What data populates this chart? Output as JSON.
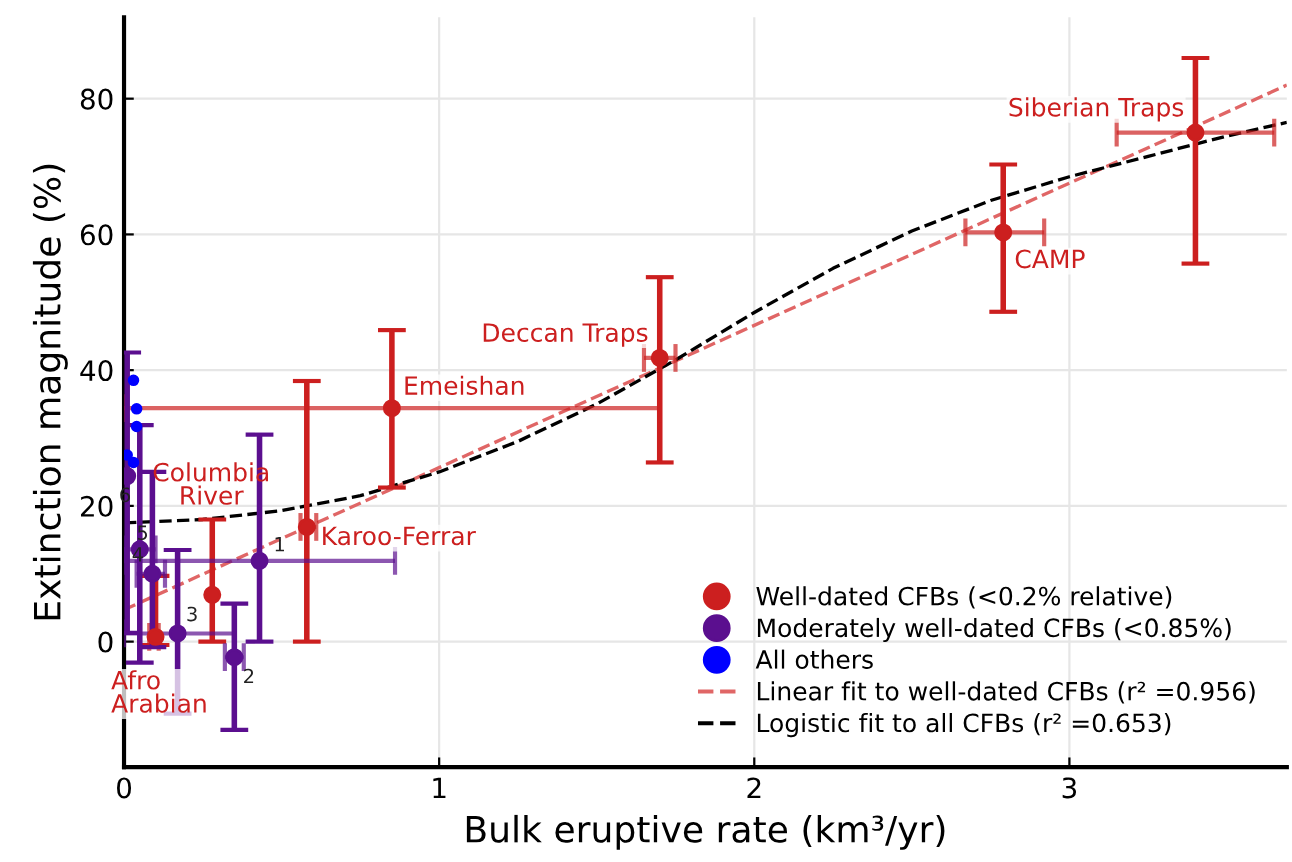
{
  "chart_data": {
    "type": "scatter",
    "xlabel": "Bulk eruptive rate (km³/yr)",
    "ylabel": "Extinction magnitude (%)",
    "xlim": [
      0,
      3.69
    ],
    "ylim": [
      -18.5,
      92
    ],
    "xticks": [
      0,
      1,
      2,
      3
    ],
    "yticks": [
      0,
      20,
      40,
      60,
      80
    ],
    "grid": true,
    "legend": "bottom right",
    "marker": "circle",
    "series": [
      {
        "name": "Well-dated CFBs (<0.2% relative)",
        "color": "#cc1f1f",
        "x": [
          3.4,
          2.79,
          1.7,
          0.85,
          0.58,
          0.28,
          0.1
        ],
        "values": [
          75,
          60.3,
          41.8,
          34.4,
          16.9,
          6.9,
          0.7
        ],
        "errors": [
          [
            55.7,
            86
          ],
          [
            48.6,
            70.3
          ],
          [
            26.4,
            53.7
          ],
          [
            22.7,
            45.9
          ],
          [
            0,
            38.4
          ],
          [
            0,
            18
          ],
          [
            -0.5,
            9.7
          ]
        ],
        "xerrors": [
          [
            3.15,
            3.65
          ],
          [
            2.67,
            2.92
          ],
          [
            1.65,
            1.75
          ],
          [
            0,
            1.7
          ],
          [
            0.56,
            0.61
          ],
          null,
          [
            0.08,
            0.11
          ]
        ]
      },
      {
        "name": "Moderately well-dated CFBs (<0.85%)",
        "color": "#5b0f8f",
        "x": [
          0.43,
          0.35,
          0.17,
          0.09,
          0.05,
          0.01
        ],
        "values": [
          11.9,
          -2.3,
          1.2,
          10.0,
          13.6,
          24.4
        ],
        "errors": [
          [
            0,
            30.5
          ],
          [
            -13,
            5.6
          ],
          [
            -10.6,
            13.5
          ],
          [
            -0.8,
            25.0
          ],
          [
            -3.1,
            31.9
          ],
          [
            1.3,
            42.6
          ]
        ],
        "xerrors": [
          [
            0,
            0.86
          ],
          [
            0.32,
            0.38
          ],
          [
            0,
            0.35
          ],
          [
            0.04,
            0.13
          ],
          [
            0,
            0.1
          ],
          null
        ]
      },
      {
        "name": "All others",
        "color": "#0000ff",
        "x": [
          0.03,
          0.04,
          0.04,
          0.01,
          0.03
        ],
        "values": [
          38.5,
          34.3,
          31.7,
          27.5,
          26.4
        ]
      },
      {
        "name": "Linear fit to well-dated CFBs (r² =0.956)",
        "type": "line",
        "line_style": "dashed",
        "marker": "none",
        "color": "#e06666",
        "x": [
          0,
          3.69
        ],
        "values": [
          4.7,
          82
        ]
      },
      {
        "name": "Logistic fit to all CFBs (r² =0.653)",
        "type": "line",
        "line_style": "dashed",
        "marker": "none",
        "color": "#000000",
        "x": [
          0,
          0.25,
          0.5,
          0.75,
          1,
          1.25,
          1.5,
          1.75,
          2,
          2.25,
          2.5,
          2.75,
          3,
          3.25,
          3.5,
          3.69
        ],
        "values": [
          17.5,
          18.0,
          19.3,
          21.5,
          25,
          29.5,
          35,
          41.5,
          48.5,
          55,
          60.5,
          65,
          68.5,
          71.5,
          74.5,
          76.5
        ]
      }
    ],
    "annotations": [
      {
        "text": "Siberian Traps",
        "x": 3.4,
        "y": 75
      },
      {
        "text": "CAMP",
        "x": 2.79,
        "y": 60.3
      },
      {
        "text": "Deccan Traps",
        "x": 1.7,
        "y": 41.8
      },
      {
        "text": "Emeishan",
        "x": 0.85,
        "y": 34.4
      },
      {
        "text": "Karoo-Ferrar",
        "x": 0.58,
        "y": 16.9
      },
      "Columbia\nRiver",
      {
        "text": "Afro\nArabian",
        "x": 0.1,
        "y": 0.7
      },
      {
        "text": "1",
        "x": 0.43,
        "y": 11.9
      },
      {
        "text": "2",
        "x": 0.35,
        "y": -2.3
      },
      {
        "text": "3",
        "x": 0.17,
        "y": 1.2
      },
      {
        "text": "4",
        "x": 0.09,
        "y": 10.0
      },
      {
        "text": "5",
        "x": 0.05,
        "y": 13.6
      },
      {
        "text": "6",
        "x": 0.01,
        "y": 24.4
      }
    ]
  }
}
